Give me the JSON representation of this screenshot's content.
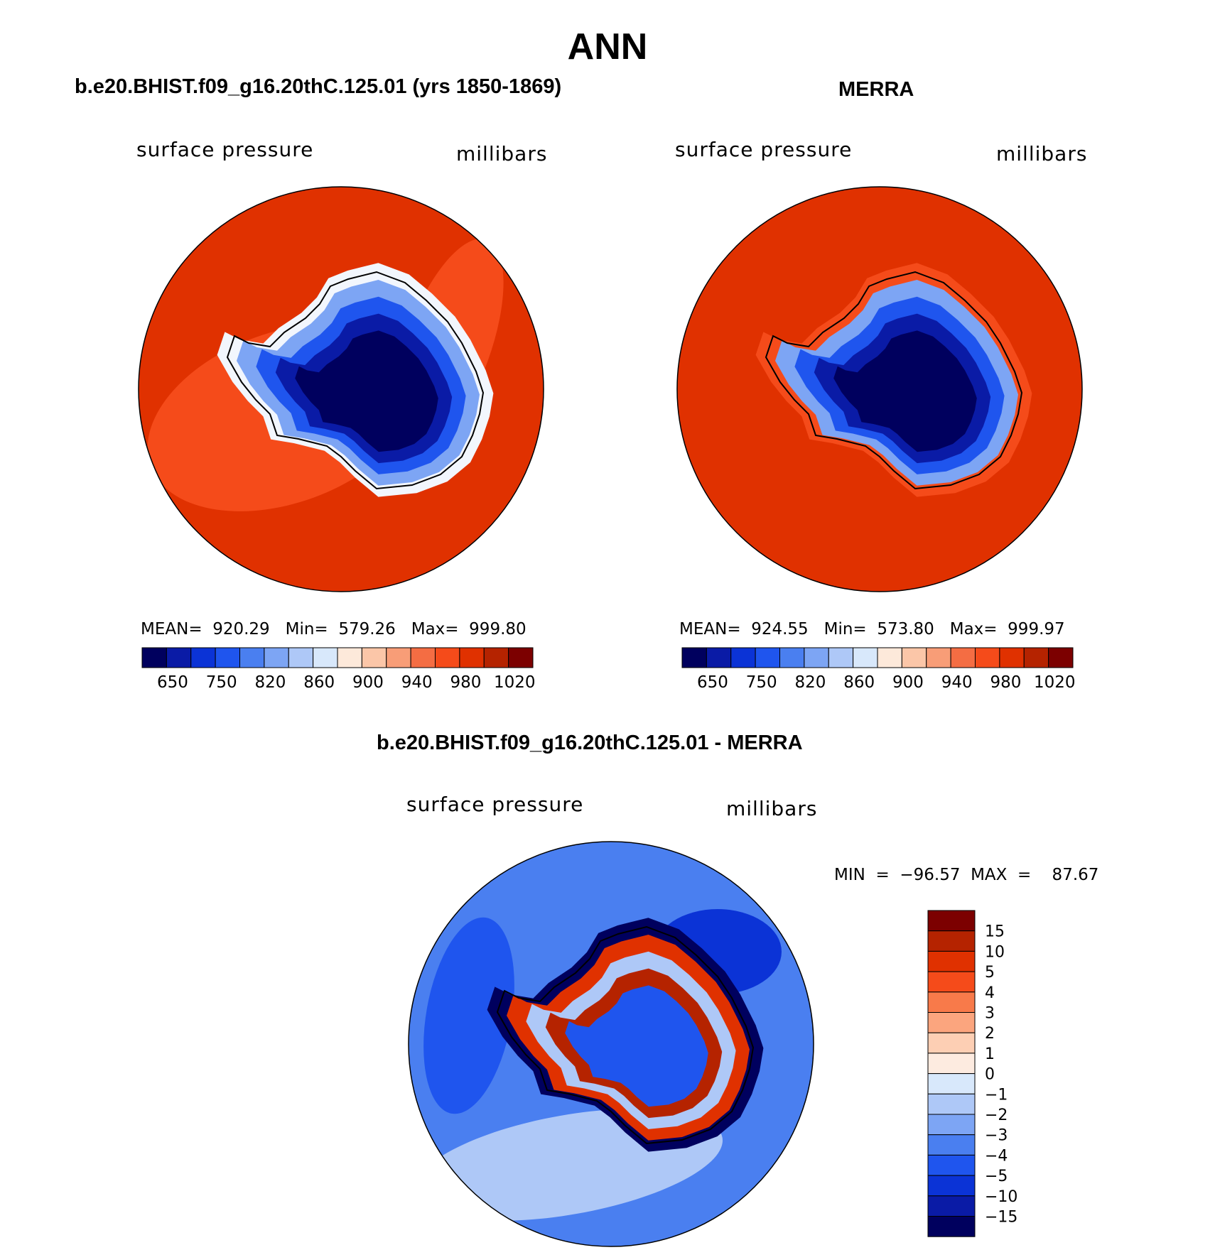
{
  "figure": {
    "title": "ANN",
    "panels": [
      {
        "title": "b.e20.BHIST.f09_g16.20thC.125.01 (yrs 1850-1869)",
        "variable": "surface pressure",
        "units": "millibars",
        "stats": "MEAN=  920.29   Min=  579.26   Max=  999.80"
      },
      {
        "title": "MERRA",
        "variable": "surface pressure",
        "units": "millibars",
        "stats": "MEAN=  924.55   Min=  573.80   Max=  999.97"
      },
      {
        "title": "b.e20.BHIST.f09_g16.20thC.125.01 - MERRA",
        "variable": "surface pressure",
        "units": "millibars",
        "stats": "MIN  =  −96.57  MAX  =    87.67"
      }
    ]
  },
  "chart_data": [
    {
      "type": "heatmap",
      "projection": "south polar stereographic",
      "title": "b.e20.BHIST.f09_g16.20thC.125.01 (yrs 1850-1869)",
      "variable": "surface pressure",
      "units": "millibars",
      "mean": 920.29,
      "min": 579.26,
      "max": 999.8,
      "colorbar": {
        "orientation": "horizontal",
        "tick_labels": [
          "650",
          "750",
          "820",
          "860",
          "900",
          "940",
          "980",
          "1020"
        ],
        "colors": [
          "#00005e",
          "#0a1ba6",
          "#0b33d6",
          "#1f55ee",
          "#4a7ff0",
          "#7da5f4",
          "#aec8f7",
          "#d8e8fb",
          "#fde9da",
          "#fbc6a8",
          "#f89d77",
          "#f46d43",
          "#f54b1a",
          "#e03100",
          "#b52300",
          "#7c0000"
        ]
      }
    },
    {
      "type": "heatmap",
      "projection": "south polar stereographic",
      "title": "MERRA",
      "variable": "surface pressure",
      "units": "millibars",
      "mean": 924.55,
      "min": 573.8,
      "max": 999.97,
      "colorbar": {
        "orientation": "horizontal",
        "tick_labels": [
          "650",
          "750",
          "820",
          "860",
          "900",
          "940",
          "980",
          "1020"
        ],
        "colors": [
          "#00005e",
          "#0a1ba6",
          "#0b33d6",
          "#1f55ee",
          "#4a7ff0",
          "#7da5f4",
          "#aec8f7",
          "#d8e8fb",
          "#fde9da",
          "#fbc6a8",
          "#f89d77",
          "#f46d43",
          "#f54b1a",
          "#e03100",
          "#b52300",
          "#7c0000"
        ]
      }
    },
    {
      "type": "heatmap",
      "projection": "south polar stereographic",
      "title": "b.e20.BHIST.f09_g16.20thC.125.01 - MERRA",
      "variable": "surface pressure",
      "units": "millibars",
      "min": -96.57,
      "max": 87.67,
      "colorbar": {
        "orientation": "vertical",
        "tick_labels": [
          "15",
          "10",
          "5",
          "4",
          "3",
          "2",
          "1",
          "0",
          "−1",
          "−2",
          "−3",
          "−4",
          "−5",
          "−10",
          "−15"
        ],
        "colors": [
          "#7c0000",
          "#b52300",
          "#e03100",
          "#f54b1a",
          "#f87a4a",
          "#fba57e",
          "#fdcfb4",
          "#fdebe0",
          "#d8e8fb",
          "#aec8f7",
          "#7da5f4",
          "#4a7ff0",
          "#1f55ee",
          "#0b33d6",
          "#0a1ba6",
          "#00005e"
        ]
      }
    }
  ]
}
